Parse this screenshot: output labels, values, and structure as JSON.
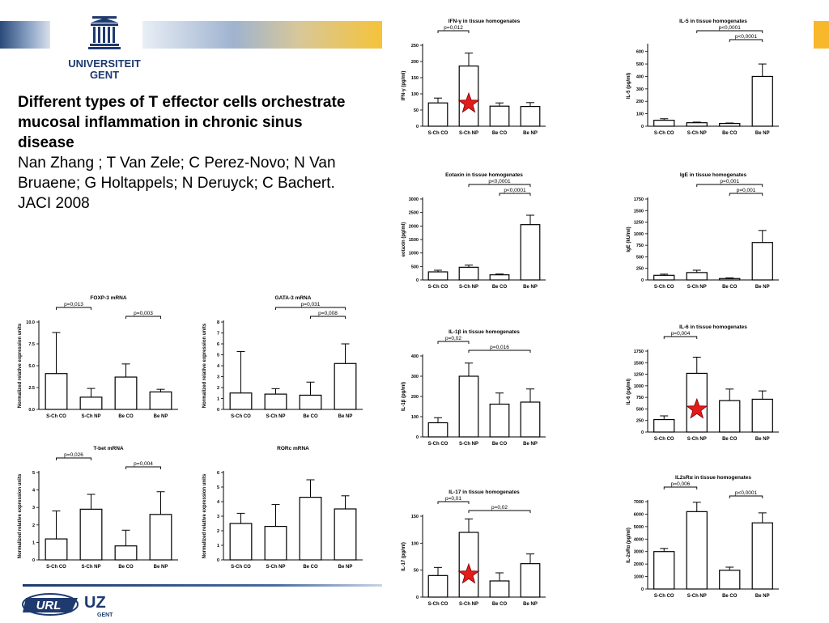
{
  "header": {
    "logo_line1": "UNIVERSITEIT",
    "logo_line2": "GENT",
    "brand_color": "#1e3a6e",
    "accent_color": "#f8b82b"
  },
  "slide": {
    "title": "Different types of T effector cells orchestrate mucosal inflammation in chronic sinus disease",
    "authors": "Nan Zhang ; T Van Zele; C Perez-Novo; N Van Bruaene; G Holtappels; N Deruyck; C Bachert. JACI 2008"
  },
  "footer": {
    "url_logo_text": "URL",
    "uz_logo_text": "UZ",
    "uz_logo_sub": "GENT"
  },
  "chart_data": [
    {
      "id": "ifn",
      "type": "bar",
      "title": "IFN-γ in tissue homogenates",
      "ylabel": "IFN-γ (pg/ml)",
      "categories": [
        "S-Ch CO",
        "S-Ch NP",
        "Be CO",
        "Be NP"
      ],
      "values": [
        72,
        186,
        62,
        61
      ],
      "errors": [
        15,
        40,
        10,
        12
      ],
      "ylim": [
        0,
        250
      ],
      "yticks": [
        0,
        50,
        100,
        150,
        200,
        250
      ],
      "brackets": [
        {
          "from": 0,
          "to": 1,
          "label": "p=0,012"
        }
      ],
      "stars": [
        1
      ]
    },
    {
      "id": "il5",
      "type": "bar",
      "title": "IL-5 in tissue homogenates",
      "ylabel": "IL-5 (pg/ml)",
      "categories": [
        "S-Ch CO",
        "S-Ch NP",
        "Be CO",
        "Be NP"
      ],
      "values": [
        48,
        28,
        22,
        400
      ],
      "errors": [
        12,
        5,
        4,
        100
      ],
      "ylim": [
        0,
        650
      ],
      "yticks": [
        0,
        100,
        200,
        300,
        400,
        500,
        600
      ],
      "brackets": [
        {
          "from": 1,
          "to": 3,
          "label": "p<0,0001"
        },
        {
          "from": 2,
          "to": 3,
          "label": "p<0,0001"
        }
      ],
      "stars": []
    },
    {
      "id": "eotaxin",
      "type": "bar",
      "title": "Eotaxin in tissue homogenates",
      "ylabel": "eotaxin (pg/ml)",
      "categories": [
        "S-Ch CO",
        "S-Ch NP",
        "Be CO",
        "Be NP"
      ],
      "values": [
        300,
        470,
        190,
        2050
      ],
      "errors": [
        60,
        80,
        30,
        350
      ],
      "ylim": [
        0,
        3000
      ],
      "yticks": [
        0,
        500,
        1000,
        1500,
        2000,
        2500,
        3000
      ],
      "brackets": [
        {
          "from": 1,
          "to": 3,
          "label": "p<0,0001"
        },
        {
          "from": 2,
          "to": 3,
          "label": "p<0,0001"
        }
      ],
      "stars": []
    },
    {
      "id": "ige",
      "type": "bar",
      "title": "IgE in tissue homogenates",
      "ylabel": "IgE (kU/ml)",
      "categories": [
        "S-Ch CO",
        "S-Ch NP",
        "Be CO",
        "Be NP"
      ],
      "values": [
        100,
        160,
        30,
        810
      ],
      "errors": [
        25,
        50,
        15,
        260
      ],
      "ylim": [
        0,
        1750
      ],
      "yticks": [
        0,
        250,
        500,
        750,
        1000,
        1250,
        1500,
        1750
      ],
      "brackets": [
        {
          "from": 1,
          "to": 3,
          "label": "p=0,001"
        },
        {
          "from": 2,
          "to": 3,
          "label": "p=0,001"
        }
      ],
      "stars": []
    },
    {
      "id": "il1b",
      "type": "bar",
      "title": "IL-1β in tissue homogenates",
      "ylabel": "IL-1β (pg/ml)",
      "categories": [
        "S-Ch CO",
        "S-Ch NP",
        "Be CO",
        "Be NP"
      ],
      "values": [
        70,
        300,
        162,
        172
      ],
      "errors": [
        25,
        65,
        55,
        65
      ],
      "ylim": [
        0,
        400
      ],
      "yticks": [
        0,
        100,
        200,
        300,
        400
      ],
      "brackets": [
        {
          "from": 0,
          "to": 1,
          "label": "p=0,02"
        },
        {
          "from": 1,
          "to": 3,
          "label": "p=0,016"
        }
      ],
      "stars": []
    },
    {
      "id": "il6",
      "type": "bar",
      "title": "IL-6 in tissue homogenates",
      "ylabel": "IL-6 (pg/ml)",
      "categories": [
        "S-Ch CO",
        "S-Ch NP",
        "Be CO",
        "Be NP"
      ],
      "values": [
        270,
        1270,
        680,
        710
      ],
      "errors": [
        80,
        350,
        250,
        180
      ],
      "ylim": [
        0,
        1750
      ],
      "yticks": [
        0,
        250,
        500,
        750,
        1000,
        1250,
        1500,
        1750
      ],
      "brackets": [
        {
          "from": 0,
          "to": 1,
          "label": "p=0,004"
        }
      ],
      "stars": [
        1
      ]
    },
    {
      "id": "il17",
      "type": "bar",
      "title": "IL-17 in tissue homogenates",
      "ylabel": "IL-17 (pg/ml)",
      "categories": [
        "S-Ch CO",
        "S-Ch NP",
        "Be CO",
        "Be NP"
      ],
      "values": [
        40,
        120,
        30,
        62
      ],
      "errors": [
        15,
        25,
        15,
        18
      ],
      "ylim": [
        0,
        150
      ],
      "yticks": [
        0,
        50,
        100,
        150
      ],
      "brackets": [
        {
          "from": 0,
          "to": 1,
          "label": "p=0,01"
        },
        {
          "from": 1,
          "to": 3,
          "label": "p=0,02"
        }
      ],
      "stars": [
        1
      ]
    },
    {
      "id": "il2sra",
      "type": "bar",
      "title": "IL2sRα in tissue homogenates",
      "ylabel": "IL-2sRα (pg/ml)",
      "categories": [
        "S-Ch CO",
        "S-Ch NP",
        "Be CO",
        "Be NP"
      ],
      "values": [
        3000,
        6200,
        1500,
        5300
      ],
      "errors": [
        250,
        750,
        250,
        800
      ],
      "ylim": [
        0,
        7000
      ],
      "yticks": [
        0,
        1000,
        2000,
        3000,
        4000,
        5000,
        6000,
        7000
      ],
      "brackets": [
        {
          "from": 0,
          "to": 1,
          "label": "p=0,006"
        },
        {
          "from": 2,
          "to": 3,
          "label": "p<0,0001"
        }
      ],
      "stars": []
    },
    {
      "id": "foxp3",
      "type": "bar",
      "title": "FOXP-3 mRNA",
      "ylabel": "Normalized relative expression units",
      "categories": [
        "S-Ch CO",
        "S-Ch NP",
        "Be CO",
        "Be NP"
      ],
      "values": [
        4.1,
        1.4,
        3.7,
        2.0
      ],
      "errors": [
        4.7,
        1.0,
        1.5,
        0.3
      ],
      "ylim": [
        0,
        10
      ],
      "yticks": [
        0,
        2.5,
        5.0,
        7.5,
        10.0
      ],
      "ytick_labels": [
        "0.0",
        "2.5",
        "5.0",
        "7.5",
        "10.0"
      ],
      "brackets": [
        {
          "from": 0,
          "to": 1,
          "label": "p=0,013"
        },
        {
          "from": 2,
          "to": 3,
          "label": "p=0,003"
        }
      ],
      "stars": []
    },
    {
      "id": "gata3",
      "type": "bar",
      "title": "GATA-3 mRNA",
      "ylabel": "Normalized relative expression units",
      "categories": [
        "S-Ch CO",
        "S-Ch NP",
        "Be CO",
        "Be NP"
      ],
      "values": [
        1.5,
        1.4,
        1.3,
        4.2
      ],
      "errors": [
        3.8,
        0.5,
        1.2,
        1.8
      ],
      "ylim": [
        0,
        8
      ],
      "yticks": [
        0,
        1,
        2,
        3,
        4,
        5,
        6,
        7,
        8
      ],
      "brackets": [
        {
          "from": 1,
          "to": 3,
          "label": "p=0,031"
        },
        {
          "from": 2,
          "to": 3,
          "label": "p=0,008"
        }
      ],
      "stars": []
    },
    {
      "id": "tbet",
      "type": "bar",
      "title": "T-bet mRNA",
      "ylabel": "Normalized relative expression units",
      "categories": [
        "S-Ch CO",
        "S-Ch NP",
        "Be CO",
        "Be NP"
      ],
      "values": [
        1.2,
        2.9,
        0.8,
        2.6
      ],
      "errors": [
        1.6,
        0.85,
        0.9,
        1.3
      ],
      "ylim": [
        0,
        5
      ],
      "yticks": [
        0,
        1,
        2,
        3,
        4,
        5
      ],
      "brackets": [
        {
          "from": 0,
          "to": 1,
          "label": "p=0,026"
        },
        {
          "from": 2,
          "to": 3,
          "label": "p=0,004"
        }
      ],
      "stars": []
    },
    {
      "id": "rorc",
      "type": "bar",
      "title": "RORc mRNA",
      "ylabel": "Normalized relative expression units",
      "categories": [
        "S-Ch CO",
        "S-Ch NP",
        "Be CO",
        "Be NP"
      ],
      "values": [
        2.5,
        2.3,
        4.3,
        3.5
      ],
      "errors": [
        0.7,
        1.5,
        1.2,
        0.9
      ],
      "ylim": [
        0,
        6
      ],
      "yticks": [
        0,
        1,
        2,
        3,
        4,
        5,
        6
      ],
      "brackets": [],
      "stars": []
    }
  ]
}
